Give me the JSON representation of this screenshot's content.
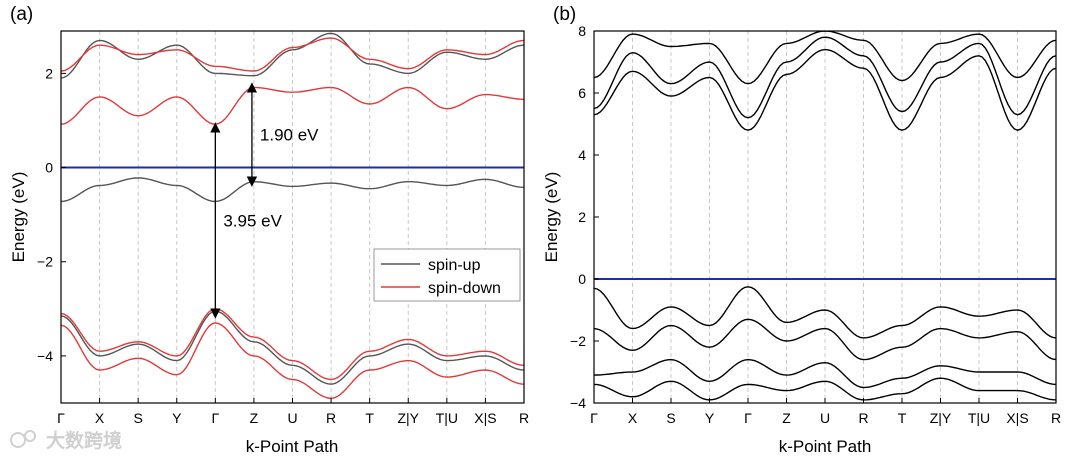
{
  "chart_data": [
    {
      "panel": "(a)",
      "type": "line",
      "title": "",
      "xlabel": "k-Point Path",
      "ylabel": "Energy (eV)",
      "ylim": [
        -5,
        2.9
      ],
      "yticks": [
        -4,
        -2,
        0,
        2
      ],
      "ytick_labels": [
        "−4",
        "−2",
        "0",
        "2"
      ],
      "x_ticks": [
        0,
        1,
        2,
        3,
        4,
        5,
        6,
        7,
        8,
        9,
        10,
        11,
        12
      ],
      "x_tick_labels": [
        "Γ",
        "X",
        "S",
        "Y",
        "Γ",
        "Z",
        "U",
        "R",
        "T",
        "Z|Y",
        "T|U",
        "X|S",
        "R"
      ],
      "fermi_level": 0,
      "legend": {
        "placement": "lower-right",
        "entries": [
          {
            "label": "spin-up",
            "color": "#555555"
          },
          {
            "label": "spin-down",
            "color": "#e03a3a"
          }
        ]
      },
      "annotations": [
        {
          "text": "1.90 eV",
          "from": [
            5,
            1.7
          ],
          "to": [
            5,
            -0.3
          ]
        },
        {
          "text": "3.95 eV",
          "from": [
            4,
            -3.1
          ],
          "to": [
            4,
            0.85
          ]
        }
      ],
      "series": [
        {
          "name": "spin-down CBM band",
          "color": "#e03a3a",
          "values": [
            0.92,
            1.5,
            1.1,
            1.5,
            0.92,
            1.7,
            1.6,
            1.7,
            1.35,
            1.7,
            1.25,
            1.55,
            1.45
          ]
        },
        {
          "name": "spin-up VBM band",
          "color": "#555555",
          "values": [
            -0.72,
            -0.38,
            -0.22,
            -0.38,
            -0.72,
            -0.3,
            -0.4,
            -0.33,
            -0.45,
            -0.3,
            -0.38,
            -0.25,
            -0.42
          ]
        },
        {
          "name": "spin-up conduction band 2",
          "color": "#555555",
          "values": [
            1.9,
            2.7,
            2.3,
            2.6,
            2.0,
            1.95,
            2.5,
            2.85,
            2.2,
            2.0,
            2.45,
            2.3,
            2.6
          ]
        },
        {
          "name": "spin-down conduction band 2",
          "color": "#e03a3a",
          "values": [
            2.05,
            2.6,
            2.4,
            2.5,
            2.15,
            2.05,
            2.55,
            2.75,
            2.3,
            2.1,
            2.5,
            2.4,
            2.7
          ]
        },
        {
          "name": "spin-up valence band 2",
          "color": "#555555",
          "values": [
            -3.15,
            -4.0,
            -3.75,
            -4.1,
            -3.05,
            -3.7,
            -4.2,
            -4.6,
            -4.0,
            -3.75,
            -4.1,
            -4.0,
            -4.3
          ]
        },
        {
          "name": "spin-down valence band 2",
          "color": "#e03a3a",
          "values": [
            -3.1,
            -3.9,
            -3.7,
            -4.0,
            -3.0,
            -3.6,
            -4.1,
            -4.5,
            -3.9,
            -3.65,
            -4.0,
            -3.9,
            -4.2
          ]
        },
        {
          "name": "spin-down valence band 3",
          "color": "#e03a3a",
          "values": [
            -3.35,
            -4.3,
            -4.05,
            -4.4,
            -3.3,
            -4.0,
            -4.5,
            -4.9,
            -4.3,
            -4.1,
            -4.45,
            -4.3,
            -4.6
          ]
        }
      ]
    },
    {
      "panel": "(b)",
      "type": "line",
      "title": "",
      "xlabel": "k-Point Path",
      "ylabel": "Energy (eV)",
      "ylim": [
        -4,
        8
      ],
      "yticks": [
        -4,
        -2,
        0,
        2,
        4,
        6,
        8
      ],
      "ytick_labels": [
        "−4",
        "−2",
        "0",
        "2",
        "4",
        "6",
        "8"
      ],
      "x_ticks": [
        0,
        1,
        2,
        3,
        4,
        5,
        6,
        7,
        8,
        9,
        10,
        11,
        12
      ],
      "x_tick_labels": [
        "Γ",
        "X",
        "S",
        "Y",
        "Γ",
        "Z",
        "U",
        "R",
        "T",
        "Z|Y",
        "T|U",
        "X|S",
        "R"
      ],
      "fermi_level": 0,
      "series": [
        {
          "name": "conduction band 1",
          "color": "#000000",
          "values": [
            5.3,
            6.7,
            5.9,
            6.5,
            4.8,
            6.6,
            7.4,
            6.8,
            4.8,
            6.5,
            7.2,
            4.8,
            6.8
          ]
        },
        {
          "name": "conduction band 2",
          "color": "#000000",
          "values": [
            5.5,
            7.3,
            6.3,
            7.0,
            5.2,
            7.0,
            7.8,
            7.2,
            5.4,
            7.0,
            7.6,
            5.3,
            7.2
          ]
        },
        {
          "name": "conduction band 3",
          "color": "#000000",
          "values": [
            6.5,
            7.9,
            7.5,
            7.6,
            6.3,
            7.6,
            8.0,
            7.7,
            6.4,
            7.6,
            7.9,
            6.5,
            7.7
          ]
        },
        {
          "name": "valence band 1",
          "color": "#000000",
          "values": [
            -0.3,
            -1.6,
            -0.9,
            -1.5,
            -0.25,
            -1.4,
            -1.0,
            -1.9,
            -1.5,
            -0.9,
            -1.2,
            -1.0,
            -1.9
          ]
        },
        {
          "name": "valence band 2",
          "color": "#000000",
          "values": [
            -1.6,
            -2.3,
            -1.5,
            -2.2,
            -1.3,
            -2.0,
            -1.6,
            -2.6,
            -2.2,
            -1.6,
            -1.9,
            -1.7,
            -2.6
          ]
        },
        {
          "name": "valence band 3",
          "color": "#000000",
          "values": [
            -3.1,
            -3.0,
            -2.6,
            -3.3,
            -2.6,
            -3.1,
            -2.7,
            -3.5,
            -3.2,
            -2.8,
            -3.0,
            -3.0,
            -3.4
          ]
        },
        {
          "name": "valence band 4",
          "color": "#000000",
          "values": [
            -3.4,
            -3.8,
            -3.3,
            -3.9,
            -3.4,
            -3.6,
            -3.3,
            -3.9,
            -3.7,
            -3.2,
            -3.6,
            -3.6,
            -3.9
          ]
        }
      ]
    }
  ],
  "watermark": {
    "text": "大数跨境"
  }
}
